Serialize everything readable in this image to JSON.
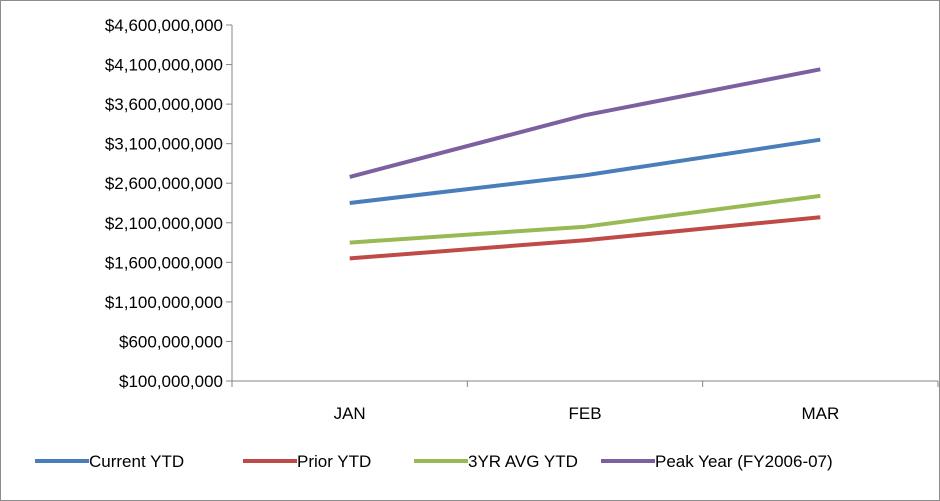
{
  "chart_data": {
    "type": "line",
    "categories": [
      "JAN",
      "FEB",
      "MAR"
    ],
    "ylim": [
      100000000,
      4600000000
    ],
    "yticks": [
      100000000,
      600000000,
      1100000000,
      1600000000,
      2100000000,
      2600000000,
      3100000000,
      3600000000,
      4100000000,
      4600000000
    ],
    "ytick_labels": [
      "$100,000,000",
      "$600,000,000",
      "$1,100,000,000",
      "$1,600,000,000",
      "$2,100,000,000",
      "$2,600,000,000",
      "$3,100,000,000",
      "$3,600,000,000",
      "$4,100,000,000",
      "$4,600,000,000"
    ],
    "grid": false,
    "legend_position": "bottom",
    "series": [
      {
        "name": "Current YTD",
        "color": "#4a7ebb",
        "values": [
          2350000000,
          2700000000,
          3150000000
        ]
      },
      {
        "name": "Prior YTD",
        "color": "#be4b48",
        "values": [
          1650000000,
          1880000000,
          2170000000
        ]
      },
      {
        "name": "3YR AVG YTD",
        "color": "#98b954",
        "values": [
          1850000000,
          2050000000,
          2440000000
        ]
      },
      {
        "name": "Peak Year  (FY2006-07)",
        "color": "#7d60a0",
        "values": [
          2680000000,
          3460000000,
          4040000000
        ]
      }
    ]
  }
}
